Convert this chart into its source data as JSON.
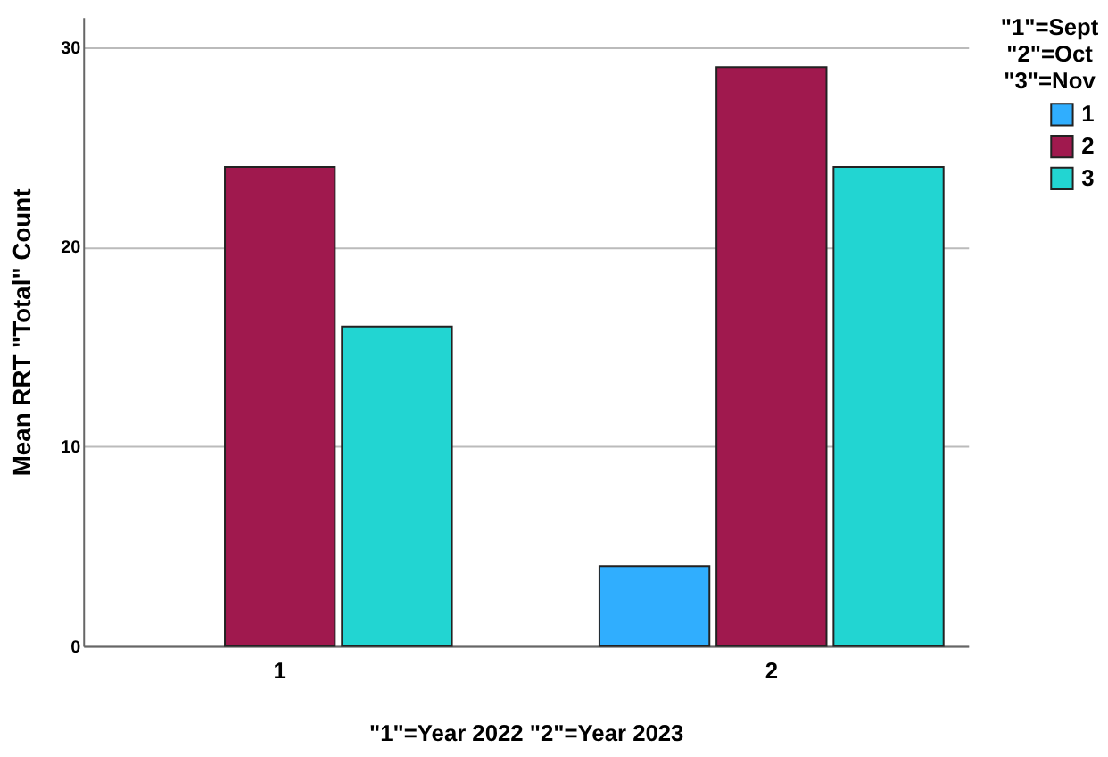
{
  "chart_data": {
    "type": "bar",
    "xlabel": "\"1\"=Year 2022  \"2\"=Year 2023",
    "ylabel": "Mean RRT \"Total\" Count",
    "legend_title": "\"1\"=Sept\n\"2\"=Oct\n\"3\"=Nov",
    "categories": [
      "1",
      "2"
    ],
    "series": [
      {
        "name": "1",
        "color": "#30aefe",
        "values": [
          null,
          4
        ]
      },
      {
        "name": "2",
        "color": "#a0194e",
        "values": [
          24,
          29
        ]
      },
      {
        "name": "3",
        "color": "#22d5d2",
        "values": [
          16,
          24
        ]
      }
    ],
    "ylim": [
      0,
      31.5
    ],
    "yticks": [
      0,
      10,
      20,
      30
    ],
    "grid": "y",
    "legend": "top right"
  }
}
